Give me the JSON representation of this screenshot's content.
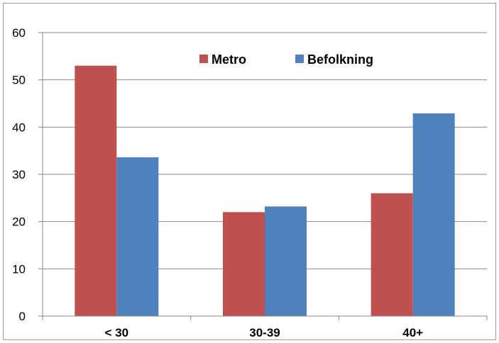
{
  "chart_data": {
    "type": "bar",
    "categories": [
      "< 30",
      "30-39",
      "40+"
    ],
    "series": [
      {
        "name": "Metro",
        "values": [
          53,
          22,
          26
        ],
        "color": "#c0504d"
      },
      {
        "name": "Befolkning",
        "values": [
          33.6,
          23.2,
          42.9
        ],
        "color": "#4f81bd"
      }
    ],
    "ylim": [
      0,
      60
    ],
    "yticks": [
      0,
      10,
      20,
      30,
      40,
      50,
      60
    ],
    "title": "",
    "xlabel": "",
    "ylabel": "",
    "grid": true,
    "legend_position": "top-right",
    "gridline_color": "#888888"
  }
}
